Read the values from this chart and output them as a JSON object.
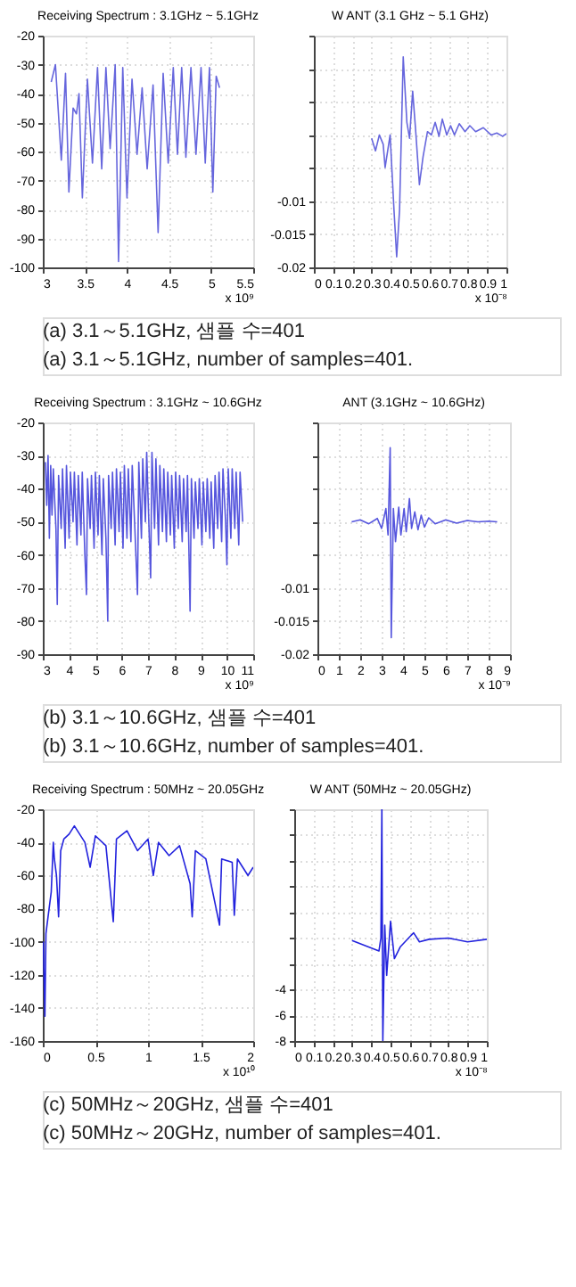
{
  "chart_data": [
    {
      "type": "line",
      "title": "Receiving Spectrum : 3.1GHz ~ 5.1GHz",
      "xlabel": "x 10⁹",
      "grid": true,
      "xlim": [
        3,
        5.5
      ],
      "xticks": [
        3,
        3.5,
        4,
        4.5,
        5,
        5.5
      ],
      "ylim": [
        -100,
        -20
      ],
      "yticks": [
        -100,
        -90,
        -80,
        -70,
        -60,
        -50,
        -40,
        -30,
        -20
      ],
      "x": [
        3.1,
        3.15,
        3.22,
        3.27,
        3.31,
        3.36,
        3.4,
        3.43,
        3.47,
        3.53,
        3.59,
        3.65,
        3.7,
        3.75,
        3.8,
        3.86,
        3.9,
        3.95,
        4.0,
        4.06,
        4.12,
        4.18,
        4.24,
        4.31,
        4.37,
        4.43,
        4.49,
        4.55,
        4.6,
        4.65,
        4.7,
        4.76,
        4.82,
        4.88,
        4.93,
        4.98,
        5.02,
        5.06,
        5.1
      ],
      "series": [
        {
          "color": "#6666dd",
          "values": [
            -36,
            -30,
            -63,
            -33,
            -74,
            -45,
            -47,
            -40,
            -76,
            -35,
            -64,
            -31,
            -66,
            -31,
            -59,
            -30,
            -98,
            -31,
            -76,
            -35,
            -61,
            -38,
            -66,
            -37,
            -88,
            -33,
            -64,
            -31,
            -61,
            -31,
            -62,
            -31,
            -61,
            -31,
            -64,
            -31,
            -74,
            -34,
            -38
          ]
        }
      ],
      "annotations": [
        "(a) 3.1～5.1GHz, 샘플 수=401",
        "(a) 3.1～5.1GHz, number of samples=401."
      ]
    },
    {
      "type": "line",
      "title": "W ANT (3.1 GHz ~ 5.1 GHz)",
      "xlabel": "x 10⁻⁸",
      "grid": true,
      "xlim": [
        0,
        1
      ],
      "xticks": [
        0,
        0.1,
        0.2,
        0.3,
        0.4,
        0.5,
        0.6,
        0.7,
        0.8,
        0.9,
        1
      ],
      "ylim": [
        -0.02,
        0.015
      ],
      "yticks": [
        -0.02,
        -0.015,
        -0.01,
        {
          "value": -0.005,
          "label": null
        },
        {
          "value": 0,
          "label": null
        },
        {
          "value": 0.005,
          "label": null
        },
        {
          "value": 0.01,
          "label": null
        },
        {
          "value": 0.015,
          "label": null
        }
      ],
      "x": [
        0.3,
        0.32,
        0.34,
        0.36,
        0.37,
        0.396,
        0.416,
        0.43,
        0.445,
        0.464,
        0.483,
        0.497,
        0.513,
        0.528,
        0.548,
        0.567,
        0.59,
        0.61,
        0.63,
        0.65,
        0.667,
        0.69,
        0.71,
        0.73,
        0.755,
        0.785,
        0.81,
        0.84,
        0.88,
        0.92,
        0.95,
        0.98,
        1.0
      ],
      "series": [
        {
          "color": "#6666dd",
          "values": [
            -0.0005,
            -0.0024,
            0,
            -0.0014,
            -0.0049,
            0,
            -0.0113,
            -0.0184,
            -0.0113,
            0.0118,
            0.0019,
            -0.0005,
            0.0066,
            0.0009,
            -0.0075,
            -0.0033,
            0.0005,
            0,
            0.0019,
            -0.0002,
            0.0024,
            0,
            0.0014,
            0,
            0.0017,
            0.0005,
            0.0014,
            0.0005,
            0.0011,
            0,
            0.0003,
            -0.0002,
            0.0002
          ]
        }
      ]
    },
    {
      "type": "line",
      "title": "Receiving Spectrum : 3.1GHz ~ 10.6GHz",
      "xlabel": "x 10⁹",
      "grid": true,
      "xlim": [
        3,
        11
      ],
      "xticks": [
        3,
        4,
        5,
        6,
        7,
        8,
        9,
        10,
        11
      ],
      "ylim": [
        -90,
        -20
      ],
      "yticks": [
        -90,
        -80,
        -70,
        -60,
        -50,
        -40,
        -30,
        -20
      ],
      "x": [
        3.1,
        3.15,
        3.2,
        3.25,
        3.3,
        3.35,
        3.4,
        3.5,
        3.55,
        3.6,
        3.7,
        3.75,
        3.85,
        3.9,
        4.0,
        4.05,
        4.15,
        4.2,
        4.3,
        4.35,
        4.45,
        4.5,
        4.6,
        4.66,
        4.7,
        4.8,
        4.85,
        4.95,
        5.0,
        5.1,
        5.15,
        5.25,
        5.3,
        5.4,
        5.47,
        5.5,
        5.6,
        5.65,
        5.75,
        5.8,
        5.9,
        5.95,
        6.05,
        6.1,
        6.2,
        6.25,
        6.35,
        6.4,
        6.5,
        6.6,
        6.65,
        6.75,
        6.8,
        6.9,
        6.95,
        7.05,
        7.1,
        7.15,
        7.25,
        7.3,
        7.4,
        7.45,
        7.55,
        7.6,
        7.7,
        7.75,
        7.85,
        7.9,
        8.0,
        8.05,
        8.15,
        8.2,
        8.3,
        8.35,
        8.45,
        8.5,
        8.6,
        8.65,
        8.75,
        8.8,
        8.9,
        8.95,
        9.05,
        9.1,
        9.2,
        9.25,
        9.35,
        9.4,
        9.5,
        9.55,
        9.65,
        9.7,
        9.8,
        9.85,
        9.95,
        10.0,
        10.05,
        10.15,
        10.2,
        10.3,
        10.35,
        10.45,
        10.5,
        10.6
      ],
      "series": [
        {
          "color": "#5555dd",
          "values": [
            -32,
            -45,
            -30,
            -55,
            -33,
            -48,
            -34,
            -52,
            -75,
            -36,
            -52,
            -34,
            -58,
            -33,
            -55,
            -35,
            -50,
            -35,
            -57,
            -36,
            -54,
            -35,
            -60,
            -72,
            -37,
            -52,
            -36,
            -58,
            -35,
            -54,
            -36,
            -60,
            -37,
            -55,
            -80,
            -36,
            -52,
            -35,
            -57,
            -34,
            -53,
            -35,
            -58,
            -33,
            -55,
            -34,
            -56,
            -33,
            -52,
            -72,
            -32,
            -55,
            -31,
            -50,
            -29,
            -55,
            -67,
            -29,
            -52,
            -31,
            -57,
            -33,
            -53,
            -34,
            -56,
            -35,
            -54,
            -36,
            -58,
            -35,
            -52,
            -36,
            -56,
            -37,
            -53,
            -36,
            -77,
            -37,
            -55,
            -38,
            -52,
            -37,
            -57,
            -38,
            -53,
            -37,
            -55,
            -38,
            -58,
            -36,
            -52,
            -35,
            -56,
            -34,
            -50,
            -63,
            -34,
            -55,
            -34,
            -52,
            -35,
            -57,
            -35,
            -50
          ]
        }
      ],
      "annotations": [
        "(b) 3.1～10.6GHz, 샘플 수=401",
        "(b) 3.1～10.6GHz, number of samples=401."
      ]
    },
    {
      "type": "line",
      "title": "ANT (3.1GHz ~ 10.6GHz)",
      "xlabel": "x 10⁻⁹",
      "grid": true,
      "xlim": [
        0,
        9
      ],
      "xticks": [
        0,
        1,
        2,
        3,
        4,
        5,
        6,
        7,
        8,
        9
      ],
      "ylim": [
        -0.02,
        0.015
      ],
      "yticks": [
        -0.02,
        -0.015,
        -0.01,
        {
          "value": -0.005,
          "label": null
        },
        {
          "value": 0,
          "label": null
        },
        {
          "value": 0.005,
          "label": null
        },
        {
          "value": 0.01,
          "label": null
        },
        {
          "value": 0.015,
          "label": null
        }
      ],
      "x": [
        1.6,
        2.0,
        2.4,
        2.8,
        3.0,
        3.2,
        3.3,
        3.4,
        3.45,
        3.55,
        3.65,
        3.8,
        3.9,
        4.05,
        4.15,
        4.3,
        4.4,
        4.55,
        4.7,
        4.85,
        5.0,
        5.2,
        5.5,
        6.0,
        6.5,
        7.0,
        7.5,
        8.0,
        8.4
      ],
      "series": [
        {
          "color": "#5555dd",
          "values": [
            0,
            0.0003,
            -0.0003,
            0.0005,
            -0.001,
            0.002,
            -0.002,
            0.0112,
            -0.0175,
            0.002,
            -0.003,
            0.0022,
            -0.002,
            0.002,
            -0.0015,
            0.0035,
            -0.001,
            0.0015,
            -0.0012,
            0.001,
            -0.0008,
            0.0006,
            -0.0003,
            0.0003,
            -0.0002,
            0.0002,
            0,
            0.0001,
            0
          ]
        }
      ]
    },
    {
      "type": "line",
      "title": "Receiving Spectrum : 50MHz ~ 20.05GHz",
      "xlabel": "x 10¹⁰",
      "grid": true,
      "xlim": [
        0,
        2
      ],
      "xticks": [
        0,
        0.5,
        1,
        1.5,
        2
      ],
      "ylim": [
        -160,
        -20
      ],
      "yticks": [
        -160,
        -140,
        -120,
        -100,
        -80,
        -60,
        -40,
        -20
      ],
      "x": [
        0.005,
        0.02,
        0.03,
        0.05,
        0.08,
        0.1,
        0.11,
        0.13,
        0.15,
        0.17,
        0.2,
        0.25,
        0.3,
        0.4,
        0.45,
        0.5,
        0.6,
        0.67,
        0.7,
        0.8,
        0.9,
        1.0,
        1.05,
        1.1,
        1.2,
        1.3,
        1.4,
        1.42,
        1.45,
        1.55,
        1.68,
        1.7,
        1.8,
        1.82,
        1.85,
        1.9,
        1.95,
        2.0
      ],
      "series": [
        {
          "color": "#2222dd",
          "values": [
            -100,
            -145,
            -95,
            -85,
            -70,
            -40,
            -50,
            -60,
            -85,
            -45,
            -38,
            -35,
            -30,
            -40,
            -55,
            -36,
            -42,
            -88,
            -38,
            -33,
            -45,
            -38,
            -60,
            -40,
            -48,
            -42,
            -65,
            -85,
            -45,
            -50,
            -90,
            -50,
            -52,
            -84,
            -50,
            -55,
            -60,
            -55
          ]
        }
      ],
      "annotations": [
        "(c) 50MHz～20GHz, 샘플 수=401",
        "(c) 50MHz～20GHz, number of samples=401."
      ]
    },
    {
      "type": "line",
      "title": "W ANT (50MHz ~ 20.05GHz)",
      "xlabel": "x 10⁻⁸",
      "grid": true,
      "xlim": [
        0,
        1
      ],
      "xticks": [
        0,
        0.1,
        0.2,
        0.3,
        0.4,
        0.5,
        0.6,
        0.7,
        0.8,
        0.9,
        1
      ],
      "ylim": [
        -8,
        10
      ],
      "yticks": [
        -8,
        -6,
        -4,
        {
          "value": -2,
          "label": null
        },
        {
          "value": 0,
          "label": null
        },
        {
          "value": 2,
          "label": null
        },
        {
          "value": 4,
          "label": null
        },
        {
          "value": 6,
          "label": null
        },
        {
          "value": 8,
          "label": null
        },
        {
          "value": 10,
          "label": null
        }
      ],
      "x": [
        0.3,
        0.44,
        0.45,
        0.455,
        0.46,
        0.47,
        0.48,
        0.5,
        0.52,
        0.55,
        0.6,
        0.62,
        0.65,
        0.7,
        0.8,
        0.9,
        1.0
      ],
      "series": [
        {
          "color": "#2222dd",
          "values": [
            -0.2,
            -1,
            0,
            10,
            -8,
            1,
            -2.9,
            1.3,
            -1.6,
            -0.7,
            0.1,
            0.4,
            -0.3,
            -0.1,
            0,
            -0.3,
            -0.1
          ]
        }
      ]
    }
  ]
}
